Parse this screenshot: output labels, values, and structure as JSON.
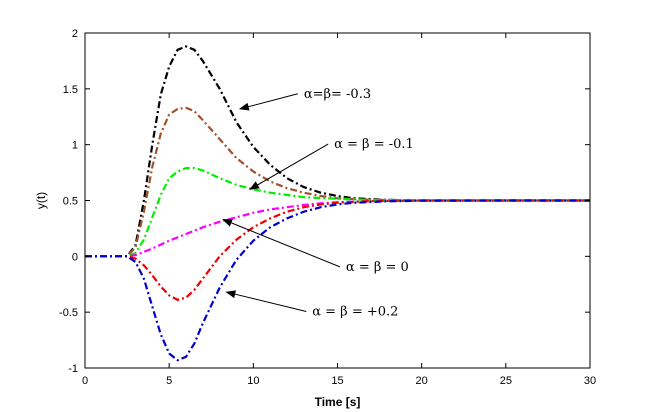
{
  "chart_data": {
    "type": "line",
    "title": "",
    "xlabel": "Time [s]",
    "ylabel": "y(t)",
    "xlim": [
      0,
      30
    ],
    "ylim": [
      -1,
      2
    ],
    "xticks": [
      0,
      5,
      10,
      15,
      20,
      25,
      30
    ],
    "yticks": [
      -1,
      -0.5,
      0,
      0.5,
      1,
      1.5,
      2
    ],
    "xtick_labels": [
      "0",
      "5",
      "10",
      "15",
      "20",
      "25",
      "30"
    ],
    "ytick_labels": [
      "-1",
      "-0.5",
      "0",
      "0.5",
      "1",
      "1.5",
      "2"
    ],
    "grid": false,
    "line_style": "dash-dot",
    "series": [
      {
        "color": "#000000",
        "points": [
          [
            0,
            0
          ],
          [
            2.5,
            0
          ],
          [
            3,
            0.1
          ],
          [
            3.5,
            0.5
          ],
          [
            4,
            1.0
          ],
          [
            4.5,
            1.45
          ],
          [
            5,
            1.7
          ],
          [
            5.5,
            1.85
          ],
          [
            6,
            1.88
          ],
          [
            6.5,
            1.85
          ],
          [
            7,
            1.75
          ],
          [
            8,
            1.5
          ],
          [
            9,
            1.2
          ],
          [
            10,
            0.98
          ],
          [
            11,
            0.82
          ],
          [
            12,
            0.7
          ],
          [
            13,
            0.62
          ],
          [
            14,
            0.57
          ],
          [
            15,
            0.54
          ],
          [
            16,
            0.52
          ],
          [
            18,
            0.505
          ],
          [
            20,
            0.5
          ],
          [
            25,
            0.5
          ],
          [
            30,
            0.5
          ]
        ]
      },
      {
        "color": "#A0522D",
        "points": [
          [
            0,
            0
          ],
          [
            2.5,
            0
          ],
          [
            3,
            0.08
          ],
          [
            3.5,
            0.4
          ],
          [
            4,
            0.8
          ],
          [
            4.5,
            1.1
          ],
          [
            5,
            1.27
          ],
          [
            5.5,
            1.32
          ],
          [
            6,
            1.33
          ],
          [
            6.5,
            1.3
          ],
          [
            7,
            1.22
          ],
          [
            8,
            1.05
          ],
          [
            9,
            0.88
          ],
          [
            10,
            0.76
          ],
          [
            11,
            0.67
          ],
          [
            12,
            0.61
          ],
          [
            13,
            0.57
          ],
          [
            14,
            0.54
          ],
          [
            15,
            0.52
          ],
          [
            17,
            0.505
          ],
          [
            20,
            0.5
          ],
          [
            25,
            0.5
          ],
          [
            30,
            0.5
          ]
        ]
      },
      {
        "color": "#00EE00",
        "points": [
          [
            0,
            0
          ],
          [
            2.5,
            0
          ],
          [
            3,
            0.03
          ],
          [
            3.5,
            0.15
          ],
          [
            4,
            0.35
          ],
          [
            4.5,
            0.55
          ],
          [
            5,
            0.7
          ],
          [
            5.5,
            0.76
          ],
          [
            6,
            0.79
          ],
          [
            6.5,
            0.79
          ],
          [
            7,
            0.77
          ],
          [
            8,
            0.7
          ],
          [
            9,
            0.64
          ],
          [
            10,
            0.6
          ],
          [
            11,
            0.57
          ],
          [
            12,
            0.55
          ],
          [
            13,
            0.53
          ],
          [
            15,
            0.515
          ],
          [
            17,
            0.505
          ],
          [
            20,
            0.5
          ],
          [
            25,
            0.5
          ],
          [
            30,
            0.5
          ]
        ]
      },
      {
        "color": "#FF00FF",
        "points": [
          [
            0,
            0
          ],
          [
            2.5,
            0
          ],
          [
            3,
            0.01
          ],
          [
            4,
            0.07
          ],
          [
            5,
            0.14
          ],
          [
            6,
            0.2
          ],
          [
            7,
            0.26
          ],
          [
            8,
            0.31
          ],
          [
            9,
            0.35
          ],
          [
            10,
            0.39
          ],
          [
            11,
            0.42
          ],
          [
            12,
            0.44
          ],
          [
            13,
            0.46
          ],
          [
            14,
            0.475
          ],
          [
            15,
            0.485
          ],
          [
            17,
            0.495
          ],
          [
            20,
            0.5
          ],
          [
            25,
            0.5
          ],
          [
            30,
            0.5
          ]
        ]
      },
      {
        "color": "#EE0000",
        "points": [
          [
            0,
            0
          ],
          [
            2.5,
            0
          ],
          [
            3,
            -0.02
          ],
          [
            3.5,
            -0.08
          ],
          [
            4,
            -0.17
          ],
          [
            4.5,
            -0.27
          ],
          [
            5,
            -0.35
          ],
          [
            5.5,
            -0.39
          ],
          [
            6,
            -0.37
          ],
          [
            6.5,
            -0.3
          ],
          [
            7,
            -0.2
          ],
          [
            8,
            0.0
          ],
          [
            9,
            0.15
          ],
          [
            10,
            0.26
          ],
          [
            11,
            0.34
          ],
          [
            12,
            0.4
          ],
          [
            13,
            0.44
          ],
          [
            14,
            0.465
          ],
          [
            15,
            0.48
          ],
          [
            17,
            0.495
          ],
          [
            20,
            0.5
          ],
          [
            25,
            0.5
          ],
          [
            30,
            0.5
          ]
        ]
      },
      {
        "color": "#0000CC",
        "points": [
          [
            0,
            0
          ],
          [
            2.5,
            0
          ],
          [
            3,
            -0.05
          ],
          [
            3.5,
            -0.2
          ],
          [
            4,
            -0.45
          ],
          [
            4.5,
            -0.7
          ],
          [
            5,
            -0.87
          ],
          [
            5.5,
            -0.93
          ],
          [
            6,
            -0.9
          ],
          [
            6.5,
            -0.78
          ],
          [
            7,
            -0.6
          ],
          [
            8,
            -0.28
          ],
          [
            9,
            -0.03
          ],
          [
            10,
            0.14
          ],
          [
            11,
            0.26
          ],
          [
            12,
            0.34
          ],
          [
            13,
            0.4
          ],
          [
            14,
            0.44
          ],
          [
            15,
            0.465
          ],
          [
            16,
            0.48
          ],
          [
            18,
            0.493
          ],
          [
            20,
            0.498
          ],
          [
            25,
            0.5
          ],
          [
            30,
            0.5
          ]
        ]
      }
    ],
    "annotations": [
      {
        "text": "α=β= -0.3",
        "text_at": [
          13.0,
          1.42
        ],
        "arrow_to": [
          9.2,
          1.32
        ]
      },
      {
        "text": "α  =  β = -0.1",
        "text_at": [
          14.8,
          0.97
        ],
        "arrow_to": [
          9.8,
          0.6
        ]
      },
      {
        "text": "α  =  β = 0",
        "text_at": [
          15.5,
          -0.13
        ],
        "arrow_to": [
          8.2,
          0.33
        ]
      },
      {
        "text": "α  =   β = +0.2",
        "text_at": [
          13.5,
          -0.53
        ],
        "arrow_to": [
          8.4,
          -0.32
        ]
      }
    ]
  }
}
